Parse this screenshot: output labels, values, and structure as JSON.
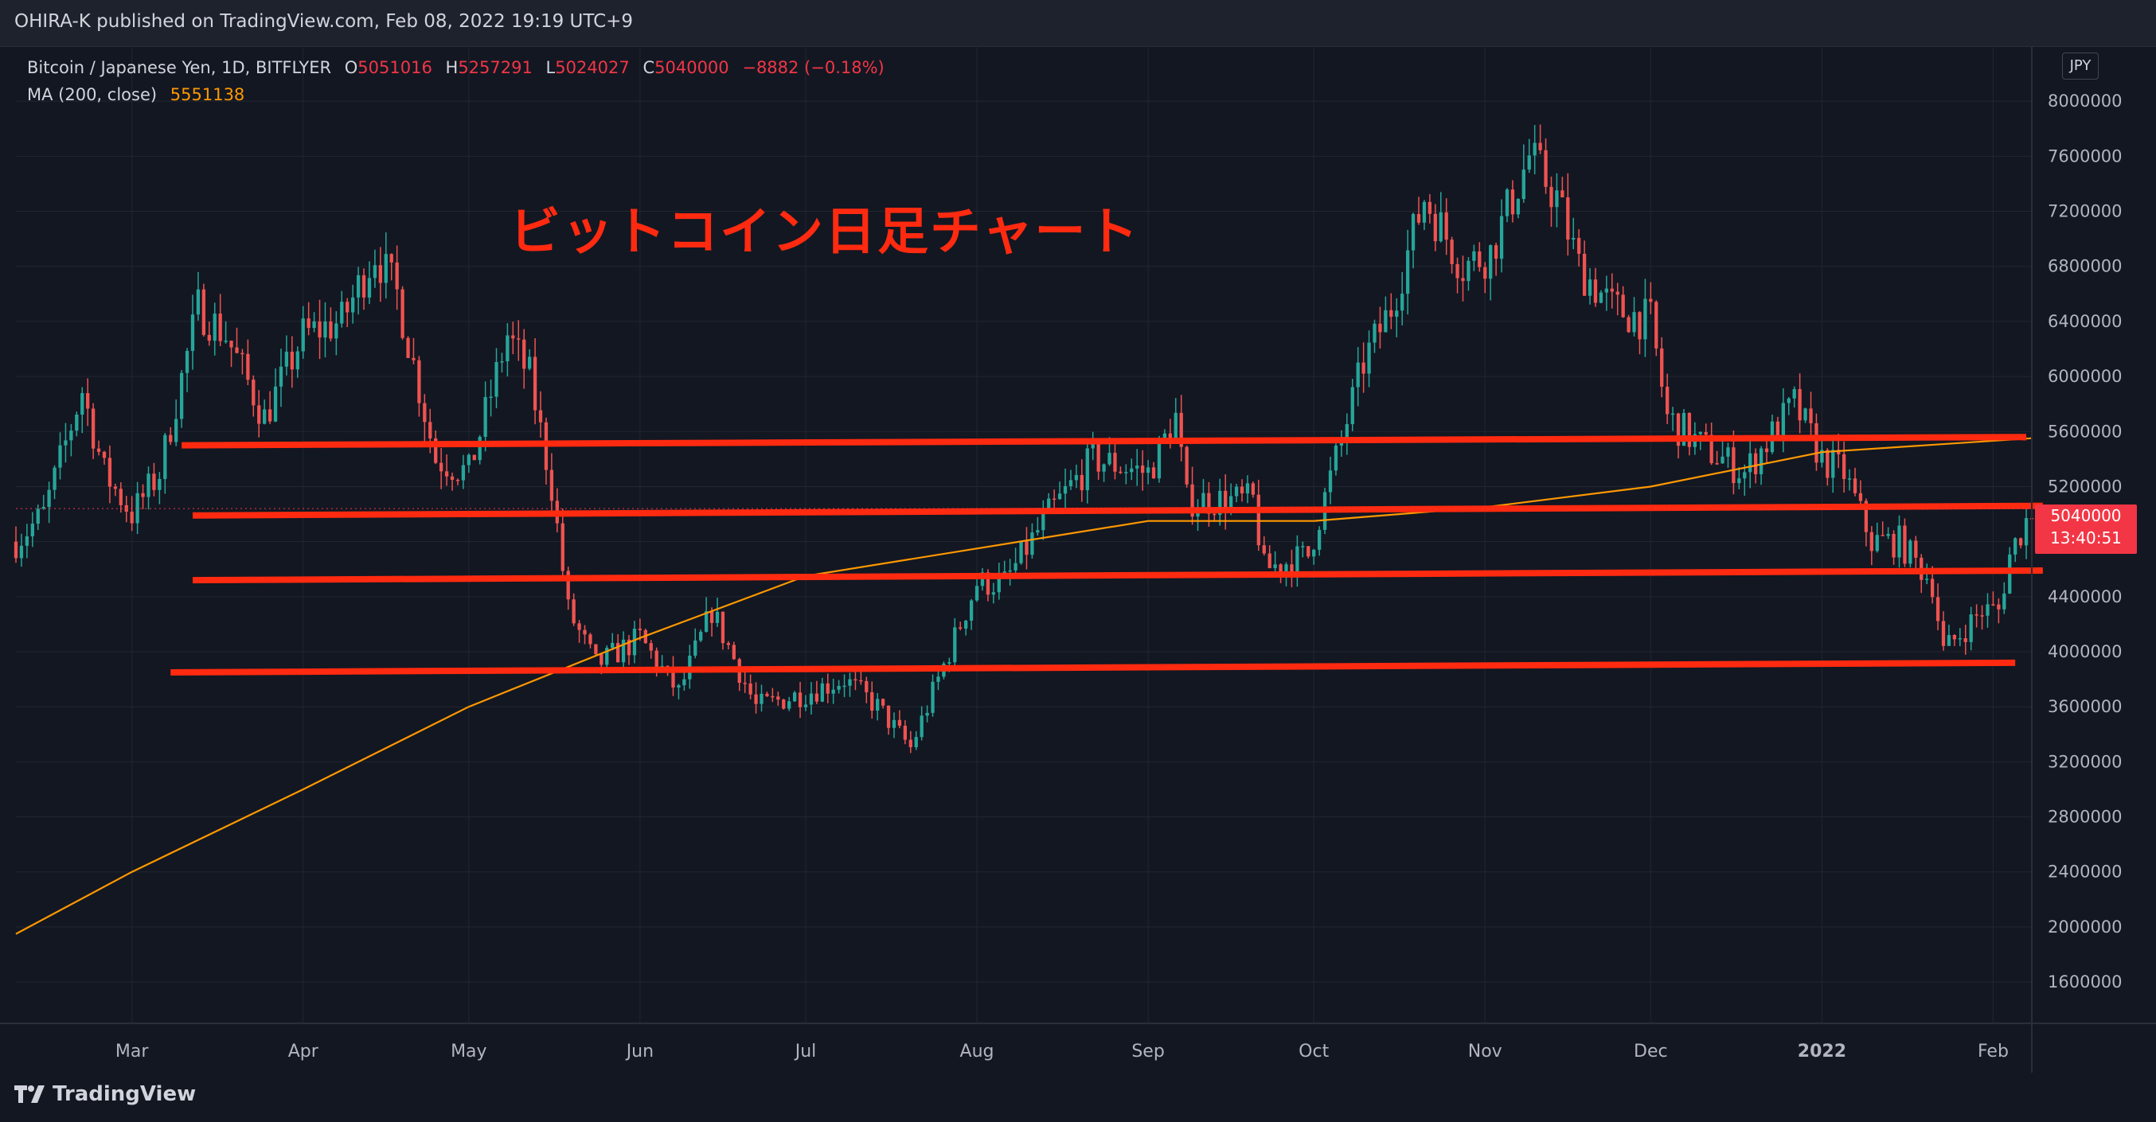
{
  "header": {
    "published_by": "OHIRA-K published on TradingView.com, Feb 08, 2022 19:19 UTC+9"
  },
  "legend": {
    "symbol": "Bitcoin / Japanese Yen, 1D, BITFLYER",
    "o_label": "O",
    "o_value": "5051016",
    "h_label": "H",
    "h_value": "5257291",
    "l_label": "L",
    "l_value": "5024027",
    "c_label": "C",
    "c_value": "5040000",
    "change": "−8882 (−0.18%)",
    "ma_label": "MA (200, close)",
    "ma_value": "5551138"
  },
  "annotation": {
    "text": "ビットコイン日足チャート"
  },
  "currency": "JPY",
  "last_price": {
    "price": "5040000",
    "countdown": "13:40:51"
  },
  "footer": {
    "brand": "TradingView"
  },
  "colors": {
    "background": "#131722",
    "up": "#26a69a",
    "down": "#ef5350",
    "ma": "#ff9800",
    "annotation": "#ff2a0f",
    "grid": "#22262f"
  },
  "chart_data": {
    "type": "candlestick",
    "symbol": "Bitcoin / Japanese Yen, 1D, BITFLYER",
    "ylim": [
      1300000,
      8400000
    ],
    "y_ticks": [
      1600000,
      2000000,
      2400000,
      2800000,
      3200000,
      3600000,
      4000000,
      4400000,
      4800000,
      5200000,
      5600000,
      6000000,
      6400000,
      6800000,
      7200000,
      7600000,
      8000000
    ],
    "x_range": [
      "2021-02-08",
      "2022-02-08"
    ],
    "x_ticks": [
      {
        "date": "2021-03-01",
        "label": "Mar"
      },
      {
        "date": "2021-04-01",
        "label": "Apr"
      },
      {
        "date": "2021-05-01",
        "label": "May"
      },
      {
        "date": "2021-06-01",
        "label": "Jun"
      },
      {
        "date": "2021-07-01",
        "label": "Jul"
      },
      {
        "date": "2021-08-01",
        "label": "Aug"
      },
      {
        "date": "2021-09-01",
        "label": "Sep"
      },
      {
        "date": "2021-10-01",
        "label": "Oct"
      },
      {
        "date": "2021-11-01",
        "label": "Nov"
      },
      {
        "date": "2021-12-01",
        "label": "Dec"
      },
      {
        "date": "2022-01-01",
        "label": "2022"
      },
      {
        "date": "2022-02-01",
        "label": "Feb"
      }
    ],
    "close_path": [
      [
        "2021-02-08",
        4800000
      ],
      [
        "2021-02-13",
        5000000
      ],
      [
        "2021-02-20",
        5900000
      ],
      [
        "2021-02-24",
        5300000
      ],
      [
        "2021-03-01",
        5000000
      ],
      [
        "2021-03-06",
        5300000
      ],
      [
        "2021-03-13",
        6500000
      ],
      [
        "2021-03-18",
        6300000
      ],
      [
        "2021-03-25",
        5700000
      ],
      [
        "2021-04-01",
        6300000
      ],
      [
        "2021-04-08",
        6400000
      ],
      [
        "2021-04-14",
        6900000
      ],
      [
        "2021-04-18",
        6600000
      ],
      [
        "2021-04-25",
        5400000
      ],
      [
        "2021-05-01",
        5300000
      ],
      [
        "2021-05-08",
        6300000
      ],
      [
        "2021-05-12",
        6000000
      ],
      [
        "2021-05-16",
        5200000
      ],
      [
        "2021-05-19",
        4300000
      ],
      [
        "2021-05-24",
        3900000
      ],
      [
        "2021-06-01",
        4100000
      ],
      [
        "2021-06-08",
        3700000
      ],
      [
        "2021-06-14",
        4300000
      ],
      [
        "2021-06-22",
        3600000
      ],
      [
        "2021-07-01",
        3700000
      ],
      [
        "2021-07-08",
        3800000
      ],
      [
        "2021-07-14",
        3600000
      ],
      [
        "2021-07-20",
        3300000
      ],
      [
        "2021-07-26",
        3900000
      ],
      [
        "2021-08-01",
        4500000
      ],
      [
        "2021-08-06",
        4500000
      ],
      [
        "2021-08-14",
        5000000
      ],
      [
        "2021-08-22",
        5400000
      ],
      [
        "2021-09-01",
        5300000
      ],
      [
        "2021-09-06",
        5700000
      ],
      [
        "2021-09-08",
        5100000
      ],
      [
        "2021-09-14",
        5100000
      ],
      [
        "2021-09-20",
        5100000
      ],
      [
        "2021-09-22",
        4600000
      ],
      [
        "2021-09-30",
        4700000
      ],
      [
        "2021-10-05",
        5400000
      ],
      [
        "2021-10-10",
        6100000
      ],
      [
        "2021-10-15",
        6500000
      ],
      [
        "2021-10-21",
        7300000
      ],
      [
        "2021-10-28",
        6800000
      ],
      [
        "2021-11-02",
        6900000
      ],
      [
        "2021-11-09",
        7600000
      ],
      [
        "2021-11-14",
        7300000
      ],
      [
        "2021-11-18",
        6800000
      ],
      [
        "2021-11-24",
        6500000
      ],
      [
        "2021-12-01",
        6400000
      ],
      [
        "2021-12-04",
        5700000
      ],
      [
        "2021-12-10",
        5500000
      ],
      [
        "2021-12-18",
        5300000
      ],
      [
        "2021-12-27",
        5800000
      ],
      [
        "2022-01-01",
        5400000
      ],
      [
        "2022-01-05",
        5300000
      ],
      [
        "2022-01-10",
        4800000
      ],
      [
        "2022-01-15",
        4800000
      ],
      [
        "2022-01-21",
        4500000
      ],
      [
        "2022-01-23",
        4000000
      ],
      [
        "2022-01-30",
        4300000
      ],
      [
        "2022-02-02",
        4300000
      ],
      [
        "2022-02-04",
        4700000
      ],
      [
        "2022-02-08",
        5040000
      ]
    ],
    "ma_path": [
      [
        "2021-02-08",
        1950000
      ],
      [
        "2021-03-01",
        2400000
      ],
      [
        "2021-04-01",
        3000000
      ],
      [
        "2021-05-01",
        3600000
      ],
      [
        "2021-06-01",
        4100000
      ],
      [
        "2021-07-01",
        4550000
      ],
      [
        "2021-08-01",
        4750000
      ],
      [
        "2021-09-01",
        4950000
      ],
      [
        "2021-10-01",
        4950000
      ],
      [
        "2021-11-01",
        5050000
      ],
      [
        "2021-12-01",
        5200000
      ],
      [
        "2022-01-01",
        5450000
      ],
      [
        "2022-02-08",
        5551138
      ]
    ],
    "trendlines": [
      {
        "from": [
          "2021-03-10",
          5500000
        ],
        "to": [
          "2022-02-07",
          5560000
        ]
      },
      {
        "from": [
          "2021-03-12",
          4990000
        ],
        "to": [
          "2022-02-10",
          5060000
        ]
      },
      {
        "from": [
          "2021-03-12",
          4520000
        ],
        "to": [
          "2022-02-10",
          4590000
        ]
      },
      {
        "from": [
          "2021-03-08",
          3850000
        ],
        "to": [
          "2022-02-05",
          3920000
        ]
      }
    ]
  }
}
